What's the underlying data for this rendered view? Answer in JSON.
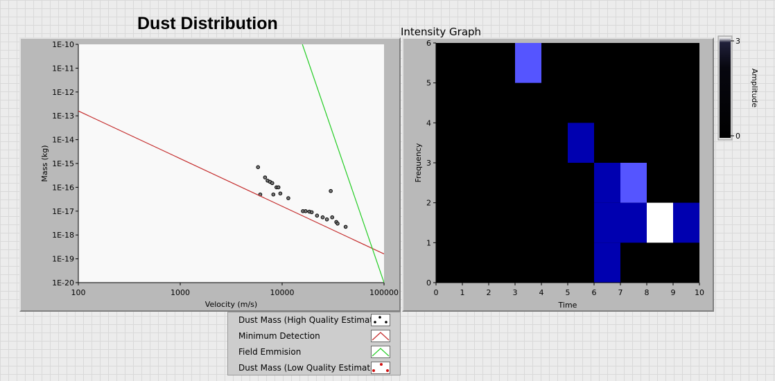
{
  "titles": {
    "dust": "Dust Distribution",
    "intensity": "Intensity Graph"
  },
  "colors": {
    "panel": "#b9b9b9",
    "plot_bg": "#f9f9f9",
    "min_detection": "#c42b2b",
    "field_emission": "#22cc22",
    "heat_black": "#000000",
    "heat_blue": "#0000b0",
    "heat_light": "#5555ff",
    "heat_white": "#ffffff"
  },
  "chart_data": [
    {
      "type": "scatter",
      "title": "Dust Distribution",
      "xlabel": "Velocity (m/s)",
      "ylabel": "Mass (kg)",
      "xscale": "log",
      "yscale": "log",
      "xlim": [
        100,
        100000
      ],
      "ylim": [
        1e-20,
        1e-10
      ],
      "x_ticks": [
        {
          "v": 100,
          "label": "100"
        },
        {
          "v": 1000,
          "label": "1000"
        },
        {
          "v": 10000,
          "label": "10000"
        },
        {
          "v": 100000,
          "label": "100000"
        }
      ],
      "y_ticks": [
        {
          "v": 1e-10,
          "label": "1E-10"
        },
        {
          "v": 1e-11,
          "label": "1E-11"
        },
        {
          "v": 1e-12,
          "label": "1E-12"
        },
        {
          "v": 1e-13,
          "label": "1E-13"
        },
        {
          "v": 1e-14,
          "label": "1E-14"
        },
        {
          "v": 1e-15,
          "label": "1E-15"
        },
        {
          "v": 1e-16,
          "label": "1E-16"
        },
        {
          "v": 1e-17,
          "label": "1E-17"
        },
        {
          "v": 1e-18,
          "label": "1E-18"
        },
        {
          "v": 1e-19,
          "label": "1E-19"
        },
        {
          "v": 1e-20,
          "label": "1E-20"
        }
      ],
      "grid": false,
      "series": [
        {
          "name": "Dust Mass (High Quality Estimate)",
          "kind": "points",
          "points": [
            [
              5800,
              7e-16
            ],
            [
              6100,
              5e-17
            ],
            [
              6800,
              2.6e-16
            ],
            [
              7200,
              1.9e-16
            ],
            [
              7600,
              1.7e-16
            ],
            [
              8000,
              1.5e-16
            ],
            [
              8200,
              5e-17
            ],
            [
              8800,
              1e-16
            ],
            [
              9200,
              1e-16
            ],
            [
              9600,
              5.5e-17
            ],
            [
              11500,
              3.5e-17
            ],
            [
              16000,
              1e-17
            ],
            [
              17000,
              1e-17
            ],
            [
              18500,
              9.5e-18
            ],
            [
              19500,
              9e-18
            ],
            [
              22000,
              6.5e-18
            ],
            [
              25000,
              5.5e-18
            ],
            [
              27500,
              4.5e-18
            ],
            [
              30000,
              7e-17
            ],
            [
              31000,
              5.5e-18
            ],
            [
              34000,
              3.5e-18
            ],
            [
              35000,
              3e-18
            ],
            [
              42000,
              2.2e-18
            ]
          ]
        },
        {
          "name": "Minimum Detection",
          "kind": "line",
          "points": [
            [
              100,
              1.6e-13
            ],
            [
              100000,
              1.6e-19
            ]
          ]
        },
        {
          "name": "Field Emmision",
          "kind": "line",
          "points": [
            [
              15800,
              1e-10
            ],
            [
              100000,
              1e-20
            ]
          ]
        },
        {
          "name": "Dust Mass (Low Quality Estimate)",
          "kind": "points",
          "points": []
        }
      ]
    },
    {
      "type": "heatmap",
      "title": "Intensity Graph",
      "xlabel": "Time",
      "ylabel": "Frequency",
      "xlim": [
        0,
        10
      ],
      "ylim": [
        0,
        6
      ],
      "x_ticks": [
        0,
        1,
        2,
        3,
        4,
        5,
        6,
        7,
        8,
        9,
        10
      ],
      "y_ticks": [
        0,
        1,
        2,
        3,
        4,
        5,
        6
      ],
      "colorscale": {
        "label": "Amplitude",
        "min": 0,
        "max": 3
      },
      "cells": [
        {
          "x": 3,
          "y": 5,
          "value": 2
        },
        {
          "x": 5,
          "y": 3,
          "value": 1
        },
        {
          "x": 6,
          "y": 0,
          "value": 1
        },
        {
          "x": 6,
          "y": 1,
          "value": 1
        },
        {
          "x": 6,
          "y": 2,
          "value": 1
        },
        {
          "x": 7,
          "y": 1,
          "value": 1
        },
        {
          "x": 7,
          "y": 2,
          "value": 2
        },
        {
          "x": 8,
          "y": 1,
          "value": 3
        },
        {
          "x": 9,
          "y": 1,
          "value": 1
        }
      ]
    }
  ],
  "legend": [
    {
      "label": "Dust Mass (High Quality Estimate)",
      "icon": "scatter-dots-icon"
    },
    {
      "label": "Minimum Detection",
      "icon": "red-line-icon"
    },
    {
      "label": "Field Emmision",
      "icon": "green-line-icon"
    },
    {
      "label": "Dust Mass (Low Quality Estimate)",
      "icon": "red-dots-icon"
    }
  ],
  "colorscale_ticks": [
    "3",
    "0"
  ]
}
